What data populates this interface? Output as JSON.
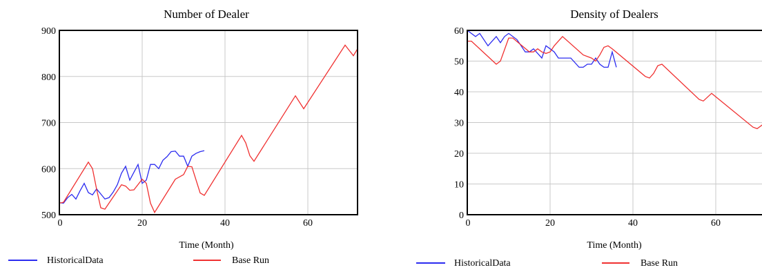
{
  "chart_data": [
    {
      "type": "line",
      "title": "Number of Dealer",
      "xlabel": "Time (Month)",
      "ylabel": "",
      "xlim": [
        0,
        72
      ],
      "ylim": [
        500,
        900
      ],
      "xticks": [
        0,
        20,
        40,
        60
      ],
      "yticks": [
        500,
        600,
        700,
        800,
        900
      ],
      "grid": true,
      "legend_position": "bottom",
      "series": [
        {
          "name": "HistoricalData",
          "color": "#2b2bf0",
          "points": [
            [
              0,
              526
            ],
            [
              1,
              525
            ],
            [
              2,
              537
            ],
            [
              3,
              544
            ],
            [
              4,
              534
            ],
            [
              5,
              552
            ],
            [
              6,
              568
            ],
            [
              7,
              548
            ],
            [
              8,
              543
            ],
            [
              9,
              556
            ],
            [
              10,
              545
            ],
            [
              11,
              534
            ],
            [
              12,
              537
            ],
            [
              13,
              549
            ],
            [
              14,
              565
            ],
            [
              15,
              590
            ],
            [
              16,
              605
            ],
            [
              17,
              575
            ],
            [
              18,
              592
            ],
            [
              19,
              609
            ],
            [
              20,
              568
            ],
            [
              21,
              575
            ],
            [
              22,
              609
            ],
            [
              23,
              609
            ],
            [
              24,
              600
            ],
            [
              25,
              618
            ],
            [
              26,
              626
            ],
            [
              27,
              637
            ],
            [
              28,
              638
            ],
            [
              29,
              627
            ],
            [
              30,
              627
            ],
            [
              31,
              605
            ],
            [
              32,
              627
            ],
            [
              33,
              633
            ],
            [
              34,
              637
            ],
            [
              35,
              639
            ]
          ]
        },
        {
          "name": "Base Run",
          "color": "#f03030",
          "points": [
            [
              0,
              525
            ],
            [
              1,
              527
            ],
            [
              7,
              614
            ],
            [
              8,
              600
            ],
            [
              9,
              555
            ],
            [
              10,
              515
            ],
            [
              11,
              512
            ],
            [
              15,
              565
            ],
            [
              16,
              562
            ],
            [
              17,
              553
            ],
            [
              18,
              554
            ],
            [
              20,
              577
            ],
            [
              21,
              568
            ],
            [
              22,
              525
            ],
            [
              23,
              505
            ],
            [
              28,
              577
            ],
            [
              30,
              587
            ],
            [
              31,
              605
            ],
            [
              32,
              604
            ],
            [
              34,
              547
            ],
            [
              35,
              542
            ],
            [
              44,
              672
            ],
            [
              45,
              656
            ],
            [
              46,
              628
            ],
            [
              47,
              616
            ],
            [
              57,
              758
            ],
            [
              59,
              730
            ],
            [
              69,
              868
            ],
            [
              71,
              845
            ],
            [
              72,
              860
            ]
          ]
        }
      ]
    },
    {
      "type": "line",
      "title": "Density of Dealers",
      "xlabel": "Time (Month)",
      "ylabel": "",
      "xlim": [
        0,
        72
      ],
      "ylim": [
        0,
        60
      ],
      "xticks": [
        0,
        20,
        40,
        60
      ],
      "yticks": [
        0,
        10,
        20,
        30,
        40,
        50,
        60
      ],
      "grid": true,
      "legend_position": "bottom",
      "series": [
        {
          "name": "HistoricalData",
          "color": "#2b2bf0",
          "points": [
            [
              0,
              60
            ],
            [
              2,
              58
            ],
            [
              3,
              59
            ],
            [
              5,
              55
            ],
            [
              7,
              58
            ],
            [
              8,
              56
            ],
            [
              9,
              58
            ],
            [
              10,
              59
            ],
            [
              12,
              57
            ],
            [
              14,
              53
            ],
            [
              15,
              53
            ],
            [
              16,
              54
            ],
            [
              18,
              51
            ],
            [
              19,
              55
            ],
            [
              20,
              54
            ],
            [
              21,
              53
            ],
            [
              22,
              51
            ],
            [
              25,
              51
            ],
            [
              27,
              48
            ],
            [
              28,
              48
            ],
            [
              29,
              49
            ],
            [
              30,
              49
            ],
            [
              31,
              51
            ],
            [
              32,
              49
            ],
            [
              33,
              48
            ],
            [
              34,
              48
            ],
            [
              35,
              53
            ],
            [
              36,
              48
            ]
          ]
        },
        {
          "name": "Base Run",
          "color": "#f03030",
          "points": [
            [
              0,
              56.5
            ],
            [
              1,
              56.5
            ],
            [
              7,
              49
            ],
            [
              8,
              50
            ],
            [
              10,
              57.5
            ],
            [
              11,
              57.5
            ],
            [
              15,
              53
            ],
            [
              16,
              53
            ],
            [
              17,
              54
            ],
            [
              18,
              53
            ],
            [
              19,
              52.5
            ],
            [
              20,
              53
            ],
            [
              21,
              55
            ],
            [
              22,
              56.5
            ],
            [
              23,
              58
            ],
            [
              28,
              52
            ],
            [
              30,
              51
            ],
            [
              31,
              50
            ],
            [
              32,
              52
            ],
            [
              33,
              54.5
            ],
            [
              34,
              55
            ],
            [
              35,
              54
            ],
            [
              43,
              45
            ],
            [
              44,
              44.5
            ],
            [
              45,
              46
            ],
            [
              46,
              48.5
            ],
            [
              47,
              49
            ],
            [
              56,
              37.5
            ],
            [
              57,
              37
            ],
            [
              59,
              39.5
            ],
            [
              69,
              28.5
            ],
            [
              70,
              28
            ],
            [
              72,
              30
            ]
          ]
        }
      ]
    }
  ]
}
